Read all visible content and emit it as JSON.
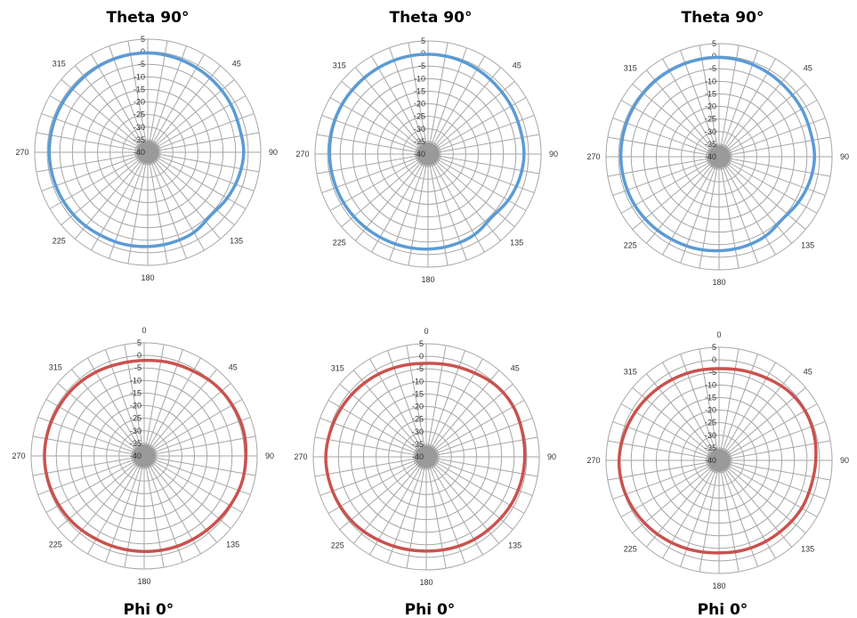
{
  "colors": {
    "grid": "#a6a6a6",
    "theta_series": "#5b9bd5",
    "phi_series": "#c9524e",
    "text": "#333333"
  },
  "chart_data": [
    {
      "type": "polar-line",
      "title": "Theta 90°",
      "r_ticks": [
        "5",
        "0",
        "-5",
        "-10",
        "-15",
        "-20",
        "-25",
        "-30",
        "-35",
        "-40"
      ],
      "rlim": [
        -40,
        5
      ],
      "angle_labels": [
        {
          "deg": 45,
          "text": "45"
        },
        {
          "deg": 90,
          "text": "90"
        },
        {
          "deg": 135,
          "text": "135"
        },
        {
          "deg": 180,
          "text": "180"
        },
        {
          "deg": 225,
          "text": "225"
        },
        {
          "deg": 270,
          "text": "270"
        },
        {
          "deg": 315,
          "text": "315"
        }
      ],
      "grid": true,
      "series": [
        {
          "color_key": "theta_series",
          "angles_deg": [
            0,
            15,
            30,
            45,
            60,
            75,
            90,
            105,
            120,
            135,
            150,
            165,
            180,
            195,
            210,
            225,
            240,
            255,
            270,
            285,
            300,
            315,
            330,
            345
          ],
          "values_db": [
            -0.5,
            -0.8,
            -1.2,
            -1.5,
            -1.8,
            -2.2,
            -1.8,
            -2.5,
            -3.5,
            -4.5,
            -3.2,
            -2.8,
            -2.5,
            -2.2,
            -2.0,
            -1.5,
            -1.2,
            -1.0,
            -0.8,
            -0.8,
            -0.8,
            -0.8,
            -0.6,
            -0.5
          ]
        }
      ]
    },
    {
      "type": "polar-line",
      "title": "Theta 90°",
      "r_ticks": [
        "5",
        "0",
        "-5",
        "-10",
        "-15",
        "-20",
        "-25",
        "-30",
        "-35",
        "-40"
      ],
      "rlim": [
        -40,
        5
      ],
      "angle_labels": [
        {
          "deg": 45,
          "text": "45"
        },
        {
          "deg": 90,
          "text": "90"
        },
        {
          "deg": 135,
          "text": "135"
        },
        {
          "deg": 180,
          "text": "180"
        },
        {
          "deg": 225,
          "text": "225"
        },
        {
          "deg": 270,
          "text": "270"
        },
        {
          "deg": 315,
          "text": "315"
        }
      ],
      "grid": true,
      "series": [
        {
          "color_key": "theta_series",
          "angles_deg": [
            0,
            15,
            30,
            45,
            60,
            75,
            90,
            105,
            120,
            135,
            150,
            165,
            180,
            195,
            210,
            225,
            240,
            255,
            270,
            285,
            300,
            315,
            330,
            345
          ],
          "values_db": [
            -0.3,
            -0.5,
            -1.0,
            -1.5,
            -1.8,
            -2.0,
            -1.8,
            -2.3,
            -3.2,
            -4.3,
            -3.0,
            -2.5,
            -2.2,
            -2.0,
            -1.8,
            -1.5,
            -1.2,
            -1.0,
            -0.8,
            -0.6,
            -0.5,
            -0.5,
            -0.4,
            -0.3
          ]
        }
      ]
    },
    {
      "type": "polar-line",
      "title": "Theta 90°",
      "r_ticks": [
        "5",
        "0",
        "-5",
        "-10",
        "-15",
        "-20",
        "-25",
        "-30",
        "-35",
        "-40"
      ],
      "rlim": [
        -40,
        5
      ],
      "angle_labels": [
        {
          "deg": 45,
          "text": "45"
        },
        {
          "deg": 90,
          "text": "90"
        },
        {
          "deg": 135,
          "text": "135"
        },
        {
          "deg": 180,
          "text": "180"
        },
        {
          "deg": 225,
          "text": "225"
        },
        {
          "deg": 270,
          "text": "270"
        },
        {
          "deg": 315,
          "text": "315"
        }
      ],
      "grid": true,
      "series": [
        {
          "color_key": "theta_series",
          "angles_deg": [
            0,
            15,
            30,
            45,
            60,
            75,
            90,
            105,
            120,
            135,
            150,
            165,
            180,
            195,
            210,
            225,
            240,
            255,
            270,
            285,
            300,
            315,
            330,
            345
          ],
          "values_db": [
            -0.5,
            -0.8,
            -1.3,
            -1.8,
            -2.0,
            -2.3,
            -2.0,
            -2.6,
            -3.6,
            -4.6,
            -3.4,
            -2.9,
            -2.6,
            -2.3,
            -2.1,
            -1.7,
            -1.3,
            -1.1,
            -0.9,
            -0.8,
            -0.7,
            -0.6,
            -0.5,
            -0.5
          ]
        }
      ]
    },
    {
      "type": "polar-line",
      "title": "Phi 0°",
      "r_ticks": [
        "5",
        "0",
        "-5",
        "-10",
        "-15",
        "-20",
        "-25",
        "-30",
        "-35",
        "-40"
      ],
      "rlim": [
        -40,
        5
      ],
      "angle_labels": [
        {
          "deg": 0,
          "text": "0"
        },
        {
          "deg": 45,
          "text": "45"
        },
        {
          "deg": 90,
          "text": "90"
        },
        {
          "deg": 135,
          "text": "135"
        },
        {
          "deg": 180,
          "text": "180"
        },
        {
          "deg": 225,
          "text": "225"
        },
        {
          "deg": 270,
          "text": "270"
        },
        {
          "deg": 315,
          "text": "315"
        }
      ],
      "grid": true,
      "series": [
        {
          "color_key": "phi_series",
          "angles_deg": [
            0,
            15,
            30,
            45,
            60,
            75,
            90,
            105,
            120,
            135,
            150,
            165,
            180,
            195,
            210,
            225,
            240,
            255,
            270,
            285,
            300,
            315,
            330,
            345
          ],
          "values_db": [
            -2.0,
            -1.5,
            -1.0,
            0.0,
            0.5,
            0.8,
            0.5,
            0.3,
            -0.5,
            -1.2,
            -1.6,
            -1.8,
            -2.0,
            -2.0,
            -1.8,
            -1.2,
            -0.8,
            -0.5,
            -0.3,
            -0.5,
            -0.8,
            -1.0,
            -1.5,
            -2.0
          ]
        }
      ]
    },
    {
      "type": "polar-line",
      "title": "Phi 0°",
      "r_ticks": [
        "5",
        "0",
        "-5",
        "-10",
        "-15",
        "-20",
        "-25",
        "-30",
        "-35",
        "-40"
      ],
      "rlim": [
        -40,
        5
      ],
      "angle_labels": [
        {
          "deg": 0,
          "text": "0"
        },
        {
          "deg": 45,
          "text": "45"
        },
        {
          "deg": 90,
          "text": "90"
        },
        {
          "deg": 135,
          "text": "135"
        },
        {
          "deg": 180,
          "text": "180"
        },
        {
          "deg": 225,
          "text": "225"
        },
        {
          "deg": 270,
          "text": "270"
        },
        {
          "deg": 315,
          "text": "315"
        }
      ],
      "grid": true,
      "series": [
        {
          "color_key": "phi_series",
          "angles_deg": [
            0,
            15,
            30,
            45,
            60,
            75,
            90,
            105,
            120,
            135,
            150,
            165,
            180,
            195,
            210,
            225,
            240,
            255,
            270,
            285,
            300,
            315,
            330,
            345
          ],
          "values_db": [
            -2.8,
            -2.3,
            -1.5,
            -0.3,
            0.0,
            -0.5,
            -0.8,
            -1.0,
            -1.3,
            -1.8,
            -2.0,
            -2.3,
            -2.5,
            -2.3,
            -1.8,
            -1.0,
            -0.5,
            -0.2,
            0.0,
            -0.5,
            -1.0,
            -1.5,
            -2.0,
            -2.5
          ]
        }
      ]
    },
    {
      "type": "polar-line",
      "title": "Phi 0°",
      "r_ticks": [
        "5",
        "0",
        "-5",
        "-10",
        "-15",
        "-20",
        "-25",
        "-30",
        "-35",
        "-40"
      ],
      "rlim": [
        -40,
        5
      ],
      "angle_labels": [
        {
          "deg": 0,
          "text": "0"
        },
        {
          "deg": 45,
          "text": "45"
        },
        {
          "deg": 90,
          "text": "90"
        },
        {
          "deg": 135,
          "text": "135"
        },
        {
          "deg": 180,
          "text": "180"
        },
        {
          "deg": 225,
          "text": "225"
        },
        {
          "deg": 270,
          "text": "270"
        },
        {
          "deg": 315,
          "text": "315"
        }
      ],
      "grid": true,
      "series": [
        {
          "color_key": "phi_series",
          "angles_deg": [
            0,
            15,
            30,
            45,
            60,
            75,
            90,
            105,
            120,
            135,
            150,
            165,
            180,
            195,
            210,
            225,
            240,
            255,
            270,
            285,
            300,
            315,
            330,
            345
          ],
          "values_db": [
            -3.5,
            -3.0,
            -2.2,
            -1.0,
            -0.5,
            -0.8,
            -1.5,
            -2.0,
            -2.0,
            -2.5,
            -2.8,
            -3.0,
            -3.2,
            -2.8,
            -2.2,
            -1.5,
            -0.8,
            -0.3,
            -0.2,
            -0.8,
            -1.5,
            -2.2,
            -2.8,
            -3.2
          ]
        }
      ]
    }
  ]
}
